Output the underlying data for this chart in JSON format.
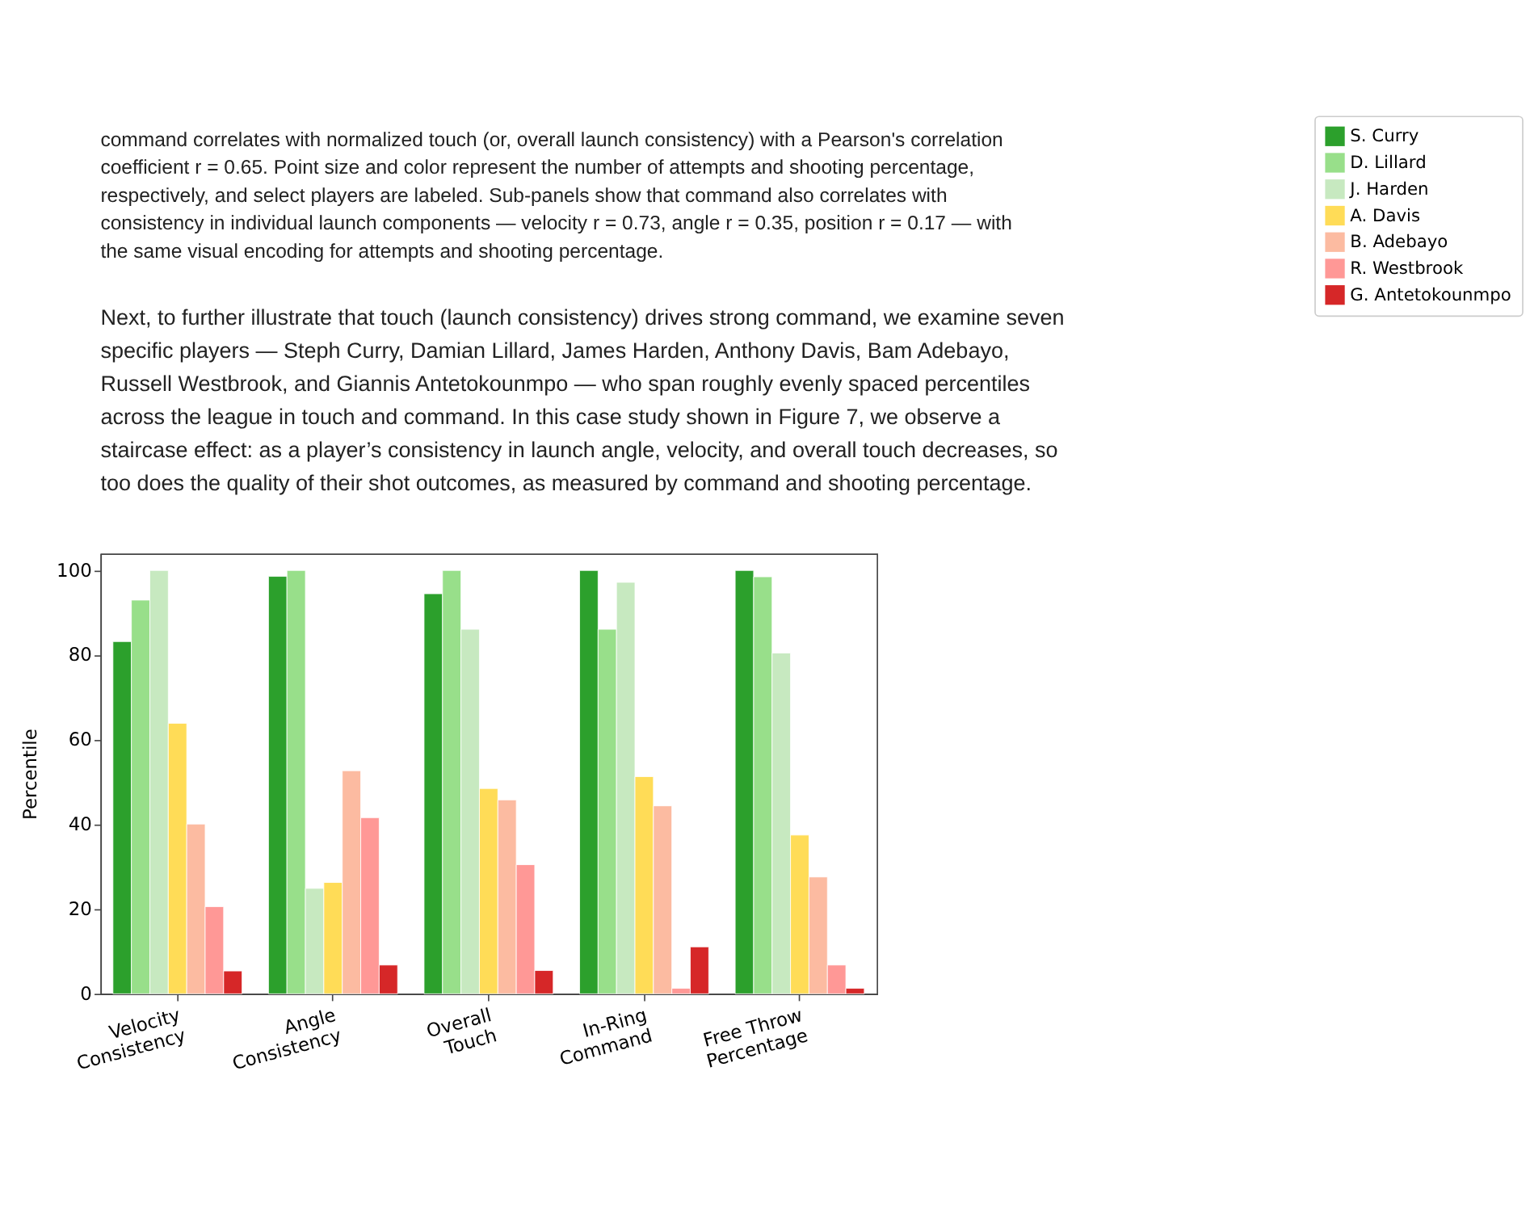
{
  "chart_data": {
    "type": "bar",
    "annotations": [
      "command correlates with normalized touch (or, overall launch consistency) with a Pearson's correlation",
      "coefficient r = 0.65. Point size and color represent the number of attempts and shooting percentage,",
      "respectively, and select players are labeled. Sub-panels show that command also correlates with",
      "consistency in individual launch components — velocity r = 0.73, angle r = 0.35, position r = 0.17 — with",
      "the same visual encoding for attempts and shooting percentage.",
      "Next, to further illustrate that touch (launch consistency) drives strong command, we examine seven",
      "specific players — Steph Curry, Damian Lillard, James Harden, Anthony Davis, Bam Adebayo,",
      "Russell Westbrook, and Giannis Antetokounmpo — who span roughly evenly spaced percentiles",
      "across the league in touch and command. In this case study shown in Figure 7, we observe a",
      "staircase effect: as a player’s consistency in launch angle, velocity, and overall touch decreases, so",
      "too does the quality of their shot outcomes, as measured by command and shooting percentage."
    ],
    "ylabel": "Percentile",
    "categories": [
      "Velocity\nConsistency",
      "Angle\nConsistency",
      "Overall\nTouch",
      "In-Ring\nCommand",
      "Free Throw\nPercentage"
    ],
    "series": [
      {
        "name": "S. Curry",
        "color": "#2ca02c",
        "values": [
          83.2,
          98.6,
          94.5,
          100,
          100
        ]
      },
      {
        "name": "D. Lillard",
        "color": "#98df8a",
        "values": [
          93,
          100,
          100,
          86.1,
          98.5
        ]
      },
      {
        "name": "J. Harden",
        "color": "#c7e9c0",
        "values": [
          100,
          24.9,
          86.1,
          97.2,
          80.5
        ]
      },
      {
        "name": "A. Davis",
        "color": "#ffdc57",
        "values": [
          63.9,
          26.3,
          48.5,
          51.3,
          37.5
        ]
      },
      {
        "name": "B. Adebayo",
        "color": "#fcbba1",
        "values": [
          40.1,
          52.7,
          45.8,
          44.4,
          27.6
        ]
      },
      {
        "name": "R. Westbrook",
        "color": "#ff9896",
        "values": [
          20.6,
          41.6,
          30.5,
          1.3,
          6.8
        ]
      },
      {
        "name": "G. Antetokounmpo",
        "color": "#d62728",
        "values": [
          5.4,
          6.8,
          5.5,
          11.1,
          1.3
        ]
      }
    ],
    "ylim": [
      0,
      104
    ],
    "yticks": [
      0,
      20,
      40,
      60,
      80,
      100
    ],
    "grid": false,
    "legend": "right"
  }
}
